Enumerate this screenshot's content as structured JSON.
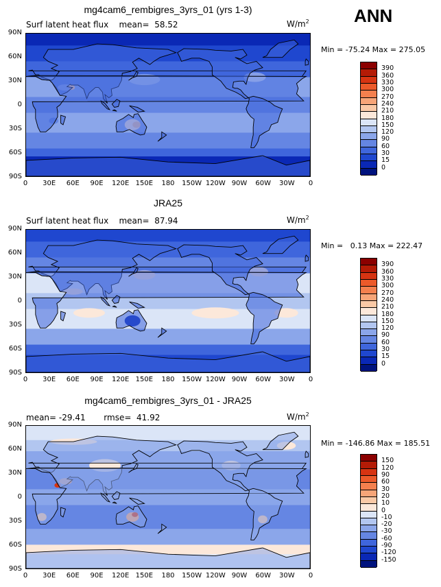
{
  "season": "ANN",
  "lat_labels": [
    "90N",
    "60N",
    "30N",
    "0",
    "30S",
    "60S",
    "90S"
  ],
  "lon_labels": [
    "0",
    "30E",
    "60E",
    "90E",
    "120E",
    "150E",
    "180",
    "150W",
    "120W",
    "90W",
    "60W",
    "30W",
    "0"
  ],
  "panels": [
    {
      "title": "mg4cam6_rembigres_3yrs_01 (yrs 1-3)",
      "subtitle": "Surf latent heat flux    mean=  58.52",
      "units_base": "W/m",
      "units_exp": "2",
      "minmax": "Min = -75.24 Max = 275.05",
      "colorbar": {
        "labels": [
          "390",
          "360",
          "330",
          "300",
          "270",
          "240",
          "210",
          "180",
          "150",
          "120",
          "90",
          "60",
          "30",
          "15",
          "0"
        ],
        "colors": [
          "#8b0000",
          "#b41b06",
          "#d73412",
          "#ec5a2a",
          "#f4804e",
          "#f7a578",
          "#fac9a6",
          "#fce8da",
          "#dbe5f7",
          "#b2c6f0",
          "#8ba6ea",
          "#6586e3",
          "#3f66dc",
          "#1f47cf",
          "#0a28b5",
          "#00137e"
        ]
      }
    },
    {
      "title": "JRA25",
      "subtitle": "Surf latent heat flux    mean=  87.94",
      "units_base": "W/m",
      "units_exp": "2",
      "minmax": "Min =   0.13 Max = 222.47",
      "colorbar": {
        "labels": [
          "390",
          "360",
          "330",
          "300",
          "270",
          "240",
          "210",
          "180",
          "150",
          "120",
          "90",
          "60",
          "30",
          "15",
          "0"
        ],
        "colors": [
          "#8b0000",
          "#b41b06",
          "#d73412",
          "#ec5a2a",
          "#f4804e",
          "#f7a578",
          "#fac9a6",
          "#fce8da",
          "#dbe5f7",
          "#b2c6f0",
          "#8ba6ea",
          "#6586e3",
          "#3f66dc",
          "#1f47cf",
          "#0a28b5",
          "#00137e"
        ]
      }
    },
    {
      "title": "mg4cam6_rembigres_3yrs_01 - JRA25",
      "subtitle": "mean= -29.41       rmse=  41.92",
      "units_base": "W/m",
      "units_exp": "2",
      "minmax": "Min = -146.86 Max = 185.51",
      "colorbar": {
        "labels": [
          "150",
          "120",
          "90",
          "60",
          "30",
          "20",
          "10",
          "0",
          "-10",
          "-20",
          "-30",
          "-60",
          "-90",
          "-120",
          "-150"
        ],
        "colors": [
          "#8b0000",
          "#b41b06",
          "#d73412",
          "#ec5a2a",
          "#f4804e",
          "#f7a578",
          "#fac9a6",
          "#fce8da",
          "#dbe5f7",
          "#b2c6f0",
          "#8ba6ea",
          "#6586e3",
          "#3f66dc",
          "#1f47cf",
          "#0a28b5",
          "#00137e"
        ]
      }
    }
  ]
}
